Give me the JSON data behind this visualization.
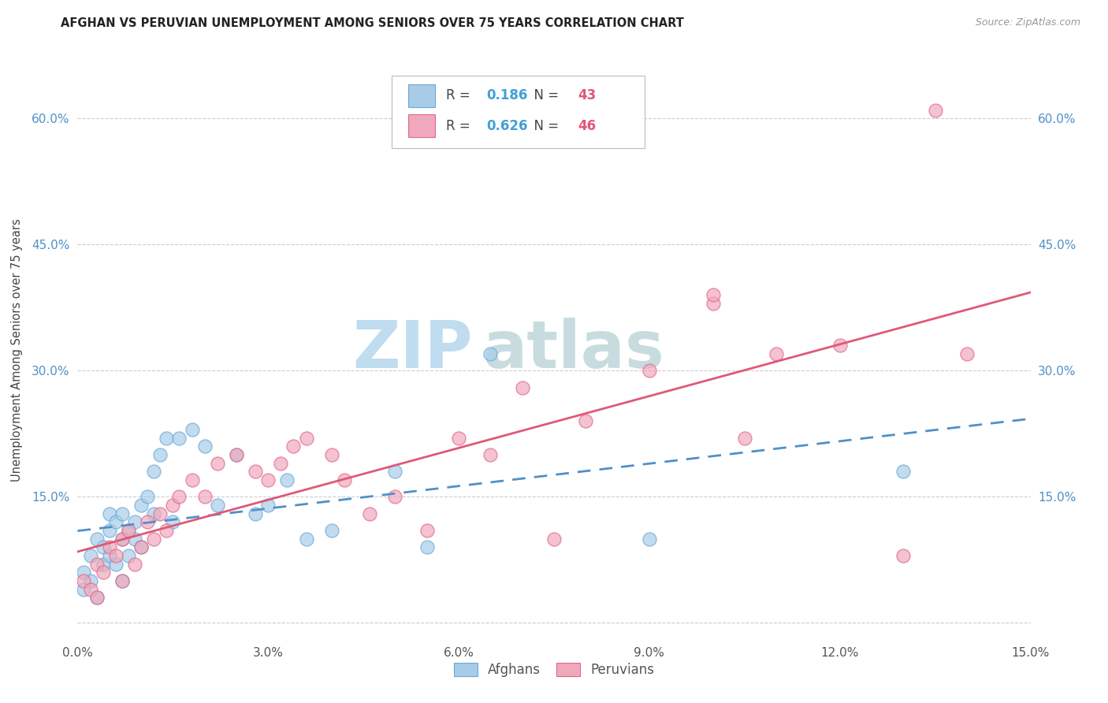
{
  "title": "AFGHAN VS PERUVIAN UNEMPLOYMENT AMONG SENIORS OVER 75 YEARS CORRELATION CHART",
  "source": "Source: ZipAtlas.com",
  "ylabel": "Unemployment Among Seniors over 75 years",
  "xlim": [
    0,
    0.15
  ],
  "ylim": [
    -0.02,
    0.67
  ],
  "xticks": [
    0.0,
    0.03,
    0.06,
    0.09,
    0.12,
    0.15
  ],
  "yticks": [
    0.0,
    0.15,
    0.3,
    0.45,
    0.6
  ],
  "ytick_labels": [
    "",
    "15.0%",
    "30.0%",
    "45.0%",
    "60.0%"
  ],
  "xtick_labels": [
    "0.0%",
    "3.0%",
    "6.0%",
    "9.0%",
    "12.0%",
    "15.0%"
  ],
  "afghan_R": 0.186,
  "afghan_N": 43,
  "peruvian_R": 0.626,
  "peruvian_N": 46,
  "afghan_color": "#a8cce8",
  "peruvian_color": "#f0a8bc",
  "afghan_edge_color": "#6aa8d8",
  "peruvian_edge_color": "#e06888",
  "afghan_line_color": "#5090c8",
  "peruvian_line_color": "#e05878",
  "tick_color": "#5090c8",
  "watermark_zip_color": "#c0dcf0",
  "watermark_atlas_color": "#c8dce0",
  "afghans_x": [
    0.001,
    0.001,
    0.002,
    0.002,
    0.003,
    0.003,
    0.004,
    0.004,
    0.005,
    0.005,
    0.005,
    0.006,
    0.006,
    0.007,
    0.007,
    0.007,
    0.008,
    0.008,
    0.009,
    0.009,
    0.01,
    0.01,
    0.011,
    0.012,
    0.012,
    0.013,
    0.014,
    0.015,
    0.016,
    0.018,
    0.02,
    0.022,
    0.025,
    0.028,
    0.03,
    0.033,
    0.036,
    0.04,
    0.05,
    0.055,
    0.065,
    0.09,
    0.13
  ],
  "afghans_y": [
    0.06,
    0.04,
    0.08,
    0.05,
    0.1,
    0.03,
    0.09,
    0.07,
    0.11,
    0.08,
    0.13,
    0.12,
    0.07,
    0.13,
    0.1,
    0.05,
    0.11,
    0.08,
    0.12,
    0.1,
    0.14,
    0.09,
    0.15,
    0.13,
    0.18,
    0.2,
    0.22,
    0.12,
    0.22,
    0.23,
    0.21,
    0.14,
    0.2,
    0.13,
    0.14,
    0.17,
    0.1,
    0.11,
    0.18,
    0.09,
    0.32,
    0.1,
    0.18
  ],
  "peruvians_x": [
    0.001,
    0.002,
    0.003,
    0.003,
    0.004,
    0.005,
    0.006,
    0.007,
    0.007,
    0.008,
    0.009,
    0.01,
    0.011,
    0.012,
    0.013,
    0.014,
    0.015,
    0.016,
    0.018,
    0.02,
    0.022,
    0.025,
    0.028,
    0.03,
    0.032,
    0.034,
    0.036,
    0.04,
    0.042,
    0.046,
    0.05,
    0.055,
    0.06,
    0.065,
    0.07,
    0.075,
    0.08,
    0.09,
    0.1,
    0.105,
    0.11,
    0.12,
    0.13,
    0.135,
    0.14,
    0.1
  ],
  "peruvians_y": [
    0.05,
    0.04,
    0.07,
    0.03,
    0.06,
    0.09,
    0.08,
    0.1,
    0.05,
    0.11,
    0.07,
    0.09,
    0.12,
    0.1,
    0.13,
    0.11,
    0.14,
    0.15,
    0.17,
    0.15,
    0.19,
    0.2,
    0.18,
    0.17,
    0.19,
    0.21,
    0.22,
    0.2,
    0.17,
    0.13,
    0.15,
    0.11,
    0.22,
    0.2,
    0.28,
    0.1,
    0.24,
    0.3,
    0.38,
    0.22,
    0.32,
    0.33,
    0.08,
    0.61,
    0.32,
    0.39
  ]
}
